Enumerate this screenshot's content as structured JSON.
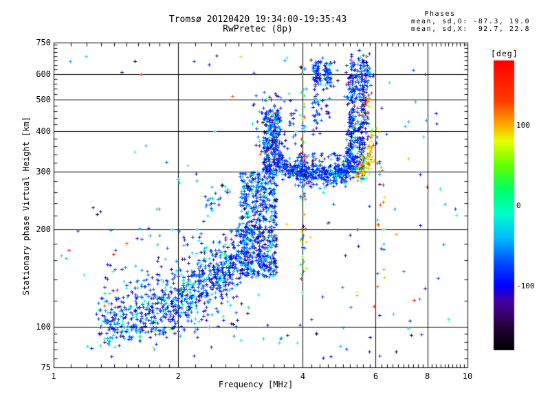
{
  "title": {
    "line1": "Tromsø 20120420 19:34:00-19:35:43",
    "line2": "RwPretec (8p)"
  },
  "stats": {
    "header": "Phases",
    "line_o": "mean, sd,O: -87.3, 19.0",
    "line_x": "mean, sd,X:  92.7, 22.8"
  },
  "axes": {
    "x": {
      "label": "Frequency [MHz]",
      "scale": "log",
      "range": [
        1,
        10
      ],
      "major_ticks": [
        1,
        2,
        4,
        6,
        8,
        10
      ],
      "minor_ticks": [
        1.1,
        1.2,
        1.3,
        1.4,
        1.5,
        1.6,
        1.7,
        1.8,
        1.9,
        2.2,
        2.4,
        2.6,
        2.8,
        3.0,
        3.2,
        3.4,
        3.6,
        3.8,
        4.2,
        4.4,
        4.6,
        4.8,
        5.0,
        5.2,
        5.4,
        5.6,
        5.8,
        6.2,
        6.4,
        6.6,
        6.8,
        7.0,
        7.2,
        7.4,
        7.6,
        7.8,
        8.2,
        8.4,
        8.6,
        8.8,
        9.0,
        9.2,
        9.4,
        9.6,
        9.8
      ],
      "gridlines": [
        2,
        4,
        6,
        8
      ]
    },
    "y": {
      "label": "Stationary phase Virtual Height [km]",
      "scale": "log",
      "range": [
        75,
        750
      ],
      "major_ticks": [
        75,
        100,
        200,
        300,
        400,
        500,
        600,
        750
      ],
      "minor_ticks": [
        80,
        85,
        90,
        95,
        120,
        140,
        160,
        180,
        220,
        240,
        260,
        280,
        320,
        340,
        360,
        380,
        420,
        440,
        460,
        480,
        520,
        540,
        560,
        580,
        620,
        640,
        660,
        680,
        700,
        720,
        740
      ],
      "gridlines": [
        100,
        200,
        300,
        400,
        500,
        600
      ]
    }
  },
  "colorbar": {
    "label": "[deg]",
    "range": [
      -180,
      180
    ],
    "ticks": [
      100,
      0,
      -100
    ],
    "stops": [
      [
        -180,
        0,
        0,
        0
      ],
      [
        -150,
        40,
        0,
        60
      ],
      [
        -120,
        70,
        0,
        160
      ],
      [
        -100,
        0,
        0,
        255
      ],
      [
        -70,
        0,
        80,
        255
      ],
      [
        -40,
        0,
        190,
        255
      ],
      [
        -10,
        0,
        255,
        200
      ],
      [
        20,
        0,
        255,
        100
      ],
      [
        50,
        100,
        255,
        0
      ],
      [
        80,
        230,
        255,
        0
      ],
      [
        100,
        255,
        170,
        0
      ],
      [
        130,
        255,
        60,
        0
      ],
      [
        180,
        255,
        0,
        0
      ]
    ]
  },
  "colors": {
    "background": "#ffffff",
    "axis": "#000000",
    "text": "#000000"
  },
  "chart_data": {
    "type": "scatter",
    "title": "Tromsø 20120420 19:34:00-19:35:43",
    "subtitle": "RwPretec (8p)",
    "xlabel": "Frequency [MHz]",
    "ylabel": "Stationary phase Virtual Height [km]",
    "xlim": [
      1,
      10
    ],
    "ylim": [
      75,
      750
    ],
    "xscale": "log",
    "yscale": "log",
    "grid": true,
    "marker": "plus",
    "marker_size_px": 5,
    "color_variable": "phase [deg]",
    "phase_mean_sd_O": [
      -87.3,
      19.0
    ],
    "phase_mean_sd_X": [
      92.7,
      22.8
    ],
    "seed": 42,
    "clusters": [
      {
        "name": "e-region-cloud",
        "type": "band",
        "n": 850,
        "path": [
          [
            1.32,
            103
          ],
          [
            1.5,
            107
          ],
          [
            1.75,
            112
          ],
          [
            2.0,
            120
          ],
          [
            2.2,
            130
          ],
          [
            2.45,
            142
          ],
          [
            2.7,
            157
          ],
          [
            2.95,
            176
          ]
        ],
        "sx": 0.013,
        "sy": 0.05,
        "phase": [
          [
            0.55,
            -87,
            19
          ],
          [
            0.22,
            -45,
            22
          ],
          [
            0.13,
            -15,
            18
          ],
          [
            0.07,
            -130,
            22
          ],
          [
            0.03,
            null,
            0
          ]
        ]
      },
      {
        "name": "e-region-halo",
        "type": "box",
        "n": 130,
        "x": [
          1.28,
          3.0
        ],
        "y": [
          92,
          205
        ],
        "phase": [
          [
            0.5,
            -87,
            25
          ],
          [
            0.3,
            -30,
            30
          ],
          [
            0.1,
            -130,
            25
          ],
          [
            0.1,
            null,
            0
          ]
        ]
      },
      {
        "name": "mid-chain",
        "type": "band",
        "n": 22,
        "path": [
          [
            2.27,
            230
          ],
          [
            2.45,
            248
          ],
          [
            2.67,
            272
          ]
        ],
        "sx": 0.008,
        "sy": 0.02,
        "phase": [
          [
            0.6,
            -80,
            20
          ],
          [
            0.4,
            -30,
            20
          ]
        ]
      },
      {
        "name": "f-column-lower",
        "type": "box",
        "n": 620,
        "x": [
          2.82,
          3.46
        ],
        "y": [
          142,
          300
        ],
        "phase": [
          [
            0.6,
            -87,
            19
          ],
          [
            0.2,
            -50,
            25
          ],
          [
            0.1,
            -15,
            20
          ],
          [
            0.07,
            -130,
            20
          ],
          [
            0.03,
            null,
            0
          ]
        ]
      },
      {
        "name": "f-column-upper",
        "type": "box",
        "n": 260,
        "x": [
          3.2,
          3.52
        ],
        "y": [
          300,
          465
        ],
        "phase": [
          [
            0.65,
            -87,
            19
          ],
          [
            0.2,
            -45,
            25
          ],
          [
            0.1,
            -130,
            25
          ],
          [
            0.05,
            null,
            0
          ]
        ]
      },
      {
        "name": "f-column-halo",
        "type": "box",
        "n": 70,
        "x": [
          3.0,
          3.85
        ],
        "y": [
          300,
          530
        ],
        "phase": [
          [
            0.6,
            -87,
            25
          ],
          [
            0.25,
            -40,
            30
          ],
          [
            0.15,
            null,
            0
          ]
        ]
      },
      {
        "name": "f-bottom-trace",
        "type": "band",
        "n": 430,
        "path": [
          [
            3.45,
            332
          ],
          [
            3.6,
            312
          ],
          [
            3.8,
            301
          ],
          [
            4.0,
            296
          ],
          [
            4.2,
            293
          ],
          [
            4.5,
            291
          ],
          [
            4.8,
            294
          ],
          [
            5.0,
            300
          ],
          [
            5.15,
            310
          ],
          [
            5.3,
            330
          ]
        ],
        "sx": 0.006,
        "sy": 0.016,
        "phase": [
          [
            0.7,
            -87,
            15
          ],
          [
            0.2,
            -50,
            20
          ],
          [
            0.07,
            -15,
            15
          ],
          [
            0.03,
            null,
            0
          ]
        ]
      },
      {
        "name": "f-trace-halo",
        "type": "box",
        "n": 90,
        "x": [
          3.9,
          5.15
        ],
        "y": [
          296,
          345
        ],
        "phase": [
          [
            0.6,
            -87,
            20
          ],
          [
            0.3,
            -40,
            25
          ],
          [
            0.1,
            null,
            0
          ]
        ]
      },
      {
        "name": "o-steep-left",
        "type": "band",
        "n": 200,
        "path": [
          [
            5.2,
            318
          ],
          [
            5.22,
            360
          ],
          [
            5.25,
            420
          ],
          [
            5.27,
            500
          ],
          [
            5.28,
            580
          ],
          [
            5.3,
            645
          ]
        ],
        "sx": 0.007,
        "sy": 0.02,
        "phase": [
          [
            0.65,
            -87,
            19
          ],
          [
            0.2,
            -50,
            25
          ],
          [
            0.1,
            -130,
            22
          ],
          [
            0.05,
            null,
            0
          ]
        ]
      },
      {
        "name": "o-steep-right",
        "type": "band",
        "n": 230,
        "path": [
          [
            5.45,
            300
          ],
          [
            5.5,
            330
          ],
          [
            5.53,
            380
          ],
          [
            5.56,
            450
          ],
          [
            5.6,
            540
          ],
          [
            5.62,
            620
          ],
          [
            5.63,
            650
          ]
        ],
        "sx": 0.008,
        "sy": 0.02,
        "phase": [
          [
            0.65,
            -87,
            19
          ],
          [
            0.2,
            -50,
            25
          ],
          [
            0.1,
            -130,
            22
          ],
          [
            0.05,
            null,
            0
          ]
        ]
      },
      {
        "name": "x-mode-arc",
        "type": "band",
        "n": 85,
        "path": [
          [
            5.42,
            296
          ],
          [
            5.55,
            302
          ],
          [
            5.68,
            315
          ],
          [
            5.78,
            335
          ],
          [
            5.85,
            368
          ],
          [
            5.88,
            400
          ]
        ],
        "sx": 0.006,
        "sy": 0.018,
        "phase": [
          [
            0.7,
            93,
            23
          ],
          [
            0.2,
            130,
            25
          ],
          [
            0.1,
            45,
            25
          ]
        ]
      },
      {
        "name": "x-mode-upper",
        "type": "band",
        "n": 12,
        "path": [
          [
            5.68,
            420
          ],
          [
            5.72,
            470
          ],
          [
            5.75,
            510
          ]
        ],
        "sx": 0.006,
        "sy": 0.02,
        "phase": [
          [
            1,
            93,
            30
          ]
        ]
      },
      {
        "name": "top-blob-left",
        "type": "box",
        "n": 55,
        "x": [
          4.22,
          4.42
        ],
        "y": [
          555,
          660
        ],
        "phase": [
          [
            0.7,
            -87,
            19
          ],
          [
            0.2,
            -45,
            25
          ],
          [
            0.1,
            -130,
            25
          ]
        ]
      },
      {
        "name": "top-blob-right",
        "type": "box",
        "n": 45,
        "x": [
          4.5,
          4.68
        ],
        "y": [
          565,
          655
        ],
        "phase": [
          [
            0.7,
            -87,
            19
          ],
          [
            0.2,
            -45,
            25
          ],
          [
            0.1,
            -130,
            25
          ]
        ]
      },
      {
        "name": "top-v-sparse",
        "type": "band",
        "n": 30,
        "path": [
          [
            4.3,
            545
          ],
          [
            4.42,
            470
          ],
          [
            4.55,
            500
          ],
          [
            4.65,
            560
          ]
        ],
        "sx": 0.01,
        "sy": 0.04,
        "phase": [
          [
            0.7,
            -87,
            25
          ],
          [
            0.3,
            -40,
            30
          ]
        ]
      },
      {
        "name": "mid-strand",
        "type": "box",
        "n": 22,
        "x": [
          4.2,
          4.35
        ],
        "y": [
          380,
          550
        ],
        "phase": [
          [
            0.7,
            -87,
            25
          ],
          [
            0.3,
            -40,
            30
          ]
        ]
      },
      {
        "name": "rfi-4mhz-low",
        "type": "vline",
        "n": 22,
        "x": 4.0,
        "jit": 0.004,
        "y": [
          140,
          225
        ],
        "phase": [
          [
            0.6,
            110,
            40
          ],
          [
            0.2,
            60,
            30
          ],
          [
            0.2,
            -60,
            60
          ]
        ]
      },
      {
        "name": "rfi-4mhz-high",
        "type": "vline",
        "n": 40,
        "x": 4.0,
        "jit": 0.004,
        "y": [
          225,
          645
        ],
        "phase": [
          [
            0.35,
            -80,
            40
          ],
          [
            0.35,
            90,
            60
          ],
          [
            0.3,
            null,
            0
          ]
        ]
      },
      {
        "name": "rfi-6mhz",
        "type": "vline",
        "n": 20,
        "x": 6.15,
        "jit": 0.007,
        "y": [
          125,
          435
        ],
        "phase": [
          [
            0.4,
            90,
            50
          ],
          [
            0.3,
            -70,
            50
          ],
          [
            0.3,
            null,
            0
          ]
        ]
      },
      {
        "name": "background-noise",
        "type": "box",
        "n": 150,
        "x": [
          1.04,
          9.6
        ],
        "y": [
          80,
          690
        ],
        "phase": [
          [
            0.45,
            -85,
            35
          ],
          [
            0.2,
            -25,
            40
          ],
          [
            0.35,
            null,
            0
          ]
        ]
      },
      {
        "name": "sub-e-sparse",
        "type": "box",
        "n": 14,
        "x": [
          1.25,
          6.2
        ],
        "y": [
          79,
          100
        ],
        "phase": [
          [
            0.7,
            -85,
            30
          ],
          [
            0.3,
            -20,
            30
          ]
        ]
      }
    ]
  }
}
